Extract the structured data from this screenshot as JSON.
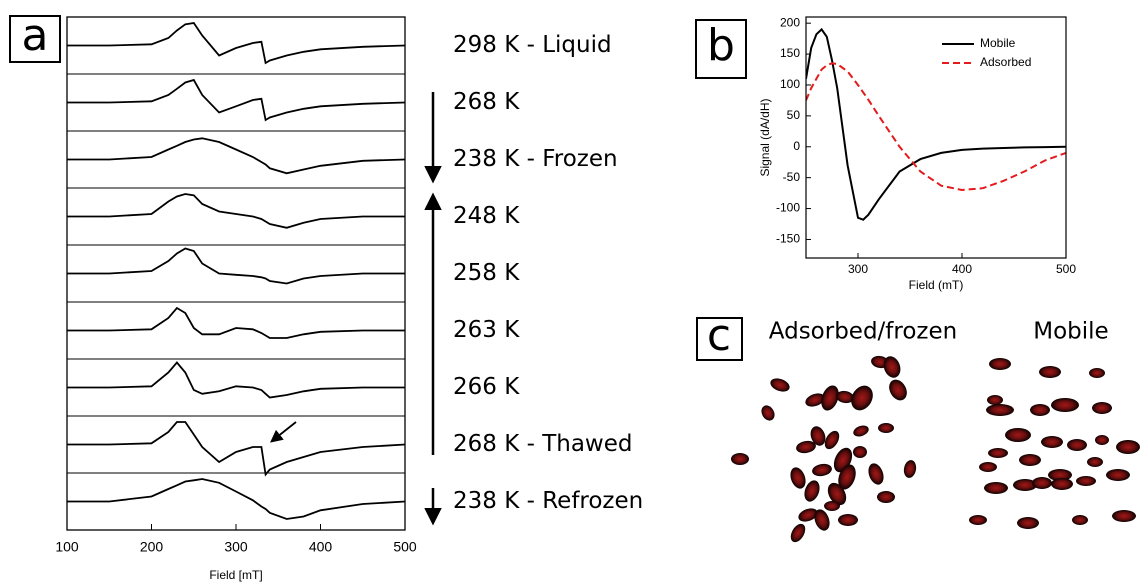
{
  "chart_data": [
    {
      "type": "stacked-line",
      "panel_label": "a",
      "x_label": "Field [mT]",
      "xlim": [
        100,
        500
      ],
      "xticks": [
        100,
        200,
        300,
        400,
        500
      ],
      "x": [
        100,
        150,
        200,
        220,
        230,
        240,
        250,
        260,
        280,
        300,
        320,
        330,
        335,
        340,
        360,
        380,
        400,
        450,
        500
      ],
      "series": [
        {
          "name": "298 K - Liquid",
          "color": "#000000",
          "values": [
            0,
            0,
            0.05,
            0.3,
            0.6,
            0.85,
            0.9,
            0.4,
            -0.4,
            -0.1,
            0.1,
            0.15,
            -0.7,
            -0.6,
            -0.4,
            -0.25,
            -0.15,
            -0.05,
            0
          ]
        },
        {
          "name": "268 K",
          "color": "#000000",
          "values": [
            0,
            0,
            0.05,
            0.3,
            0.55,
            0.8,
            0.9,
            0.3,
            -0.4,
            -0.15,
            0.1,
            0.15,
            -0.7,
            -0.6,
            -0.4,
            -0.25,
            -0.15,
            -0.05,
            0
          ]
        },
        {
          "name": "238 K - Frozen",
          "color": "#000000",
          "values": [
            0,
            0,
            0.1,
            0.4,
            0.55,
            0.7,
            0.8,
            0.85,
            0.7,
            0.4,
            0.1,
            -0.1,
            -0.2,
            -0.35,
            -0.55,
            -0.4,
            -0.25,
            -0.05,
            0
          ]
        },
        {
          "name": "248 K",
          "color": "#000000",
          "values": [
            0,
            0,
            0.1,
            0.6,
            0.8,
            0.9,
            0.85,
            0.5,
            0.2,
            0.1,
            0,
            -0.1,
            -0.2,
            -0.3,
            -0.45,
            -0.25,
            -0.1,
            0,
            0
          ]
        },
        {
          "name": "258 K",
          "color": "#000000",
          "values": [
            0,
            0,
            0.1,
            0.5,
            0.8,
            1,
            0.9,
            0.4,
            0,
            -0.05,
            -0.1,
            -0.15,
            -0.2,
            -0.3,
            -0.4,
            -0.2,
            -0.1,
            0,
            0
          ]
        },
        {
          "name": "263 K",
          "color": "#000000",
          "values": [
            0,
            0,
            0.05,
            0.5,
            0.9,
            0.7,
            0.1,
            -0.15,
            -0.15,
            0.1,
            0.05,
            -0.1,
            -0.2,
            -0.3,
            -0.3,
            -0.15,
            -0.05,
            0,
            0
          ]
        },
        {
          "name": "266 K",
          "color": "#000000",
          "values": [
            0,
            0,
            0.05,
            0.6,
            1,
            0.6,
            -0.1,
            -0.25,
            -0.15,
            0.05,
            0,
            -0.1,
            -0.25,
            -0.4,
            -0.3,
            -0.15,
            -0.05,
            0,
            0
          ]
        },
        {
          "name": "268 K - Thawed",
          "color": "#000000",
          "values": [
            0,
            0,
            0.05,
            0.5,
            0.9,
            0.9,
            0.4,
            -0.1,
            -0.7,
            -0.3,
            -0.1,
            -0.1,
            -1.2,
            -1.0,
            -0.7,
            -0.5,
            -0.3,
            -0.1,
            0
          ]
        },
        {
          "name": "238 K - Refrozen",
          "color": "#000000",
          "values": [
            0,
            0,
            0.2,
            0.5,
            0.65,
            0.8,
            0.85,
            0.9,
            0.75,
            0.4,
            0.05,
            -0.2,
            -0.3,
            -0.45,
            -0.7,
            -0.6,
            -0.35,
            -0.1,
            0
          ]
        }
      ]
    },
    {
      "type": "line",
      "panel_label": "b",
      "x_label": "Field (mT)",
      "y_label": "Signal (dA/dH)",
      "xlim": [
        250,
        500
      ],
      "xticks": [
        300,
        400,
        500
      ],
      "ylim": [
        -180,
        210
      ],
      "yticks": [
        -150,
        -100,
        -50,
        0,
        50,
        100,
        150,
        200
      ],
      "legend": "upper right",
      "x": [
        250,
        255,
        260,
        265,
        270,
        275,
        280,
        290,
        300,
        305,
        310,
        320,
        340,
        360,
        380,
        400,
        420,
        440,
        460,
        480,
        500
      ],
      "series": [
        {
          "name": "Mobile",
          "color": "#000000",
          "dash": "solid",
          "values": [
            110,
            160,
            182,
            190,
            178,
            140,
            95,
            -30,
            -115,
            -118,
            -110,
            -85,
            -40,
            -20,
            -10,
            -5,
            -3,
            -2,
            -1,
            -0.5,
            0
          ]
        },
        {
          "name": "Adsorbed",
          "color": "#e41a1c",
          "dash": "dashed",
          "values": [
            75,
            95,
            110,
            125,
            132,
            135,
            134,
            122,
            100,
            88,
            76,
            50,
            0,
            -40,
            -63,
            -70,
            -67,
            -55,
            -40,
            -22,
            -10
          ]
        }
      ]
    }
  ],
  "panel_c": {
    "label": "c",
    "titles": [
      "Adsorbed/frozen",
      "Mobile"
    ]
  }
}
